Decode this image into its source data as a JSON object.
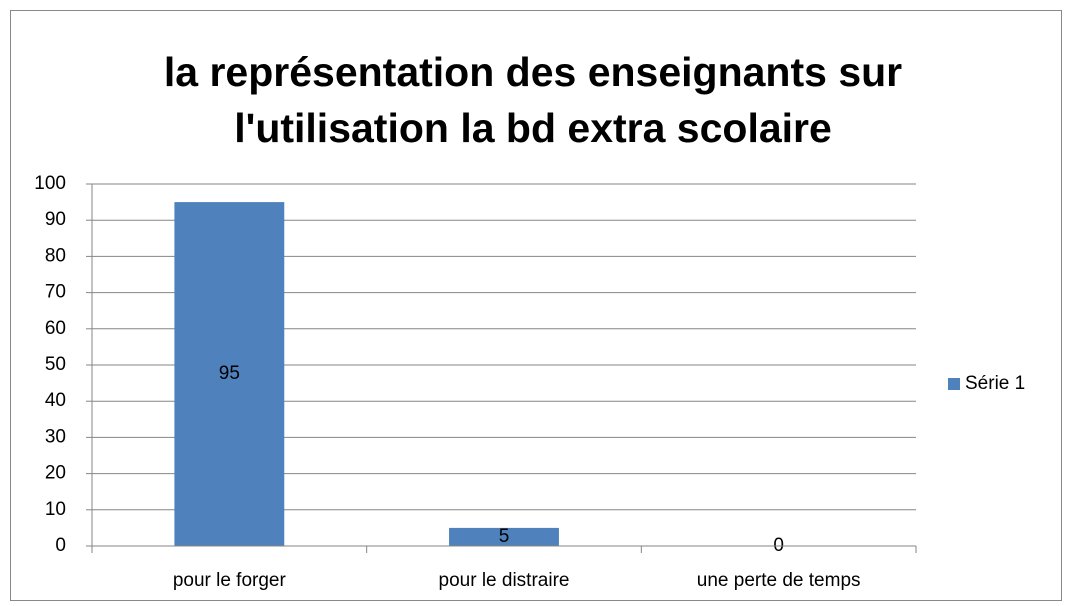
{
  "chart_data": {
    "type": "bar",
    "title": [
      "la représentation   des enseignants sur",
      "l'utilisation  la bd extra scolaire"
    ],
    "categories": [
      "pour le forger",
      "pour le distraire",
      "une perte de temps"
    ],
    "series": [
      {
        "name": "Série 1",
        "color": "#4f81bd",
        "values": [
          95,
          5,
          0
        ]
      }
    ],
    "ylim": [
      0,
      100
    ],
    "yticks": [
      0,
      10,
      20,
      30,
      40,
      50,
      60,
      70,
      80,
      90,
      100
    ],
    "grid": true,
    "legend": "right",
    "data_labels": true
  }
}
